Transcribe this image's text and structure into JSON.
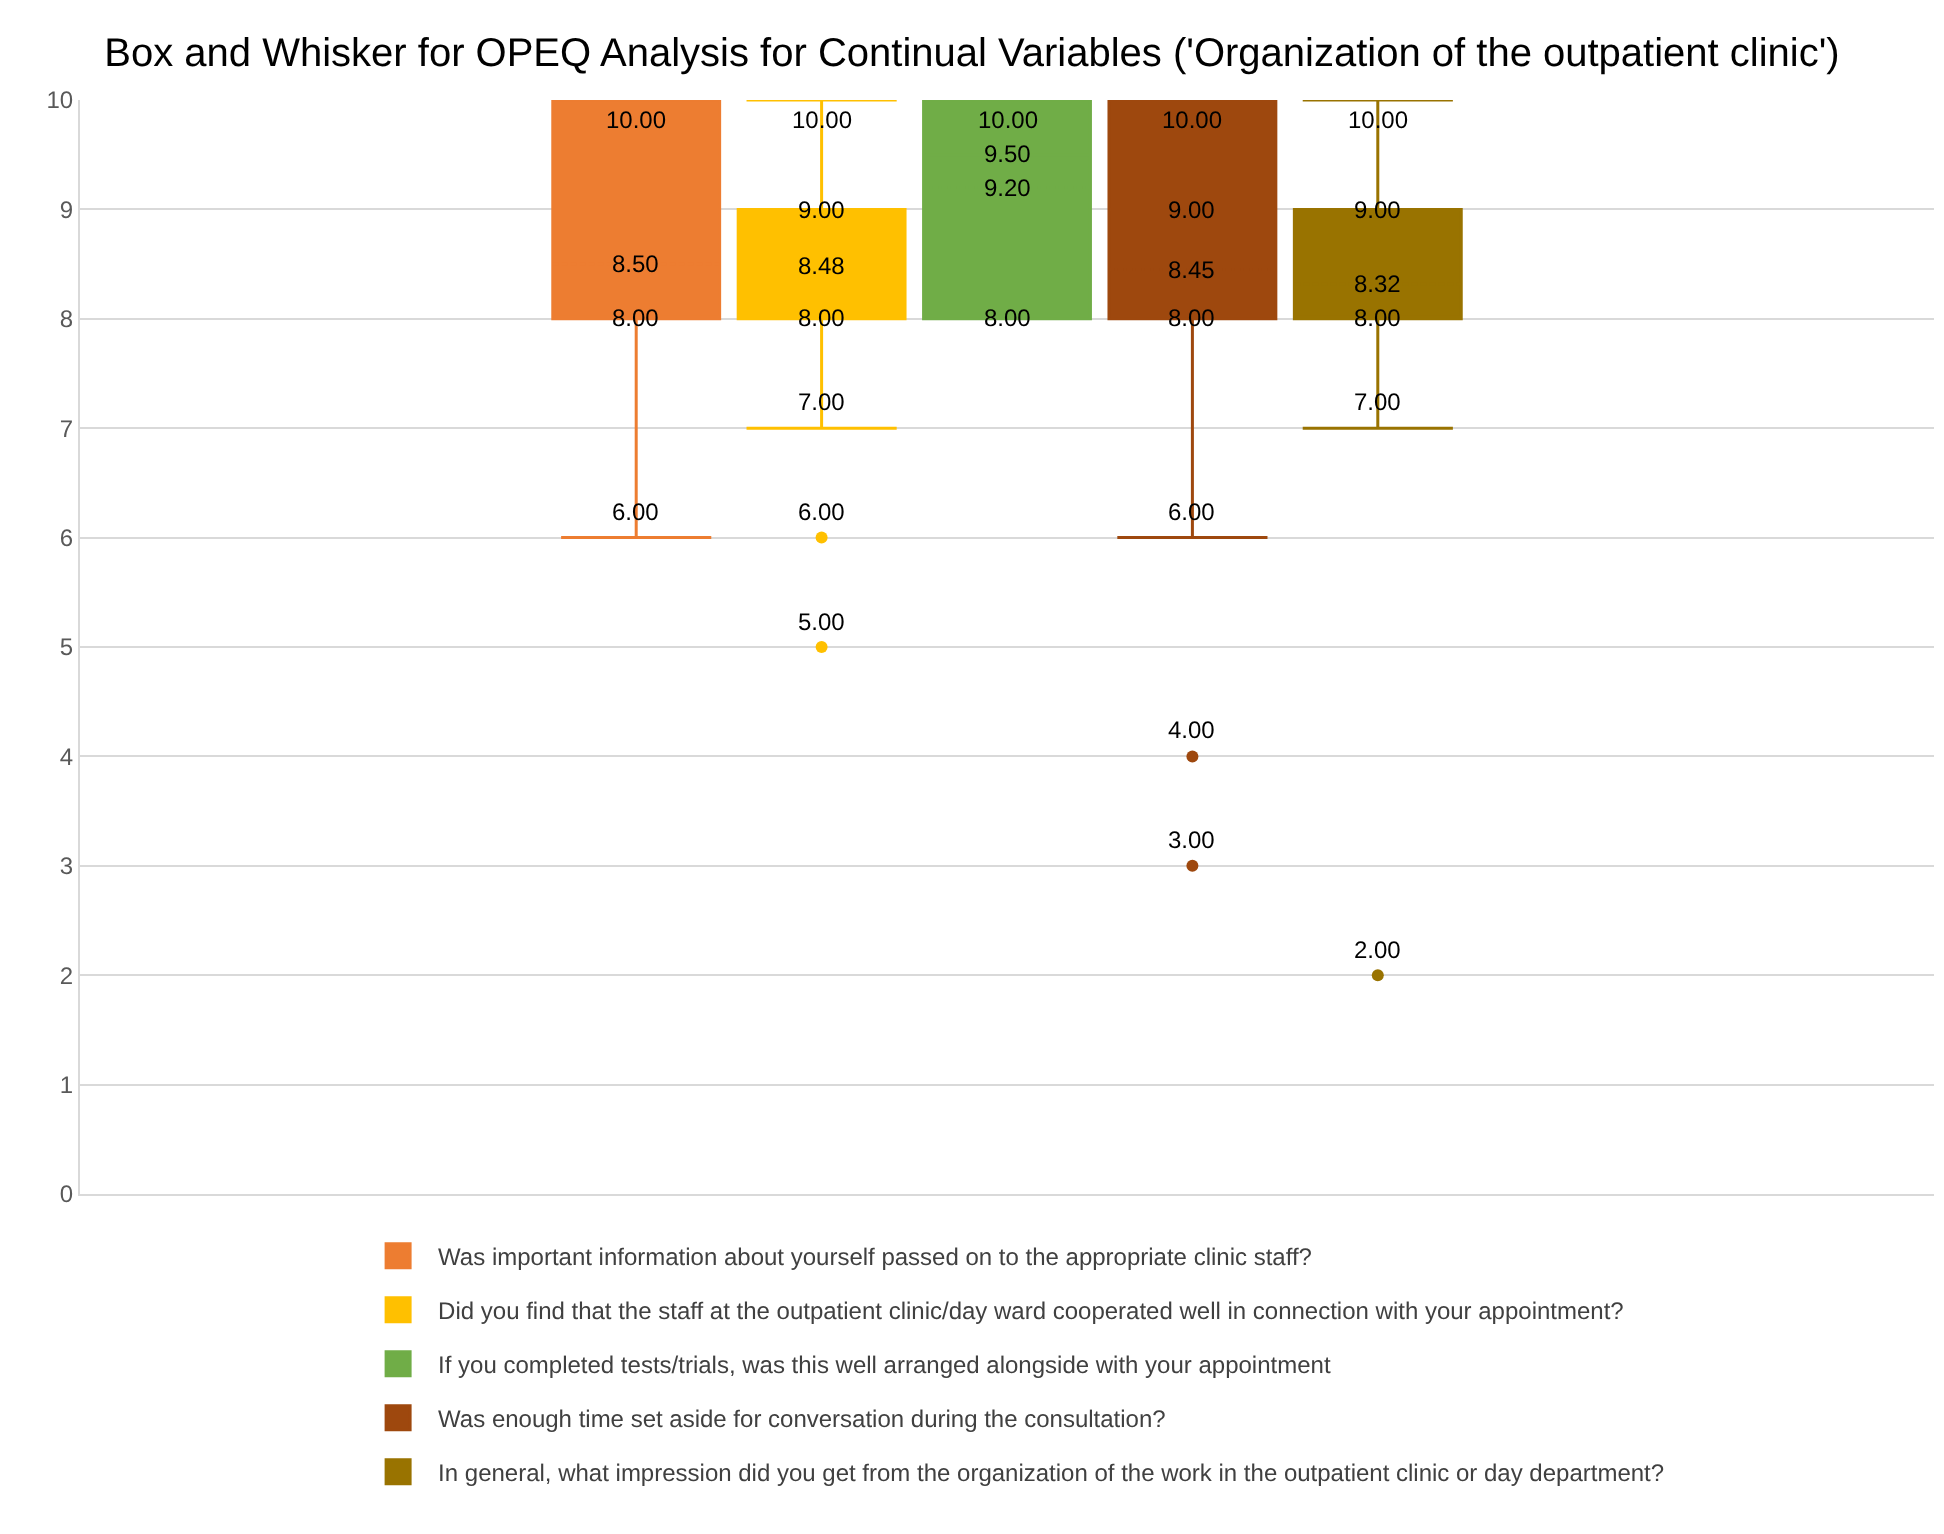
{
  "chart_data": {
    "type": "box",
    "title": "Box and Whisker for OPEQ Analysis for Continual Variables ('Organization of the outpatient clinic')",
    "categories": [
      null
    ],
    "series": [
      {
        "name": "Was important information about yourself passed on to the appropriate clinic staff?",
        "color": "#ed7d31",
        "boxes": [
          {
            "low": 6,
            "q1": 8,
            "median": 8,
            "q3": 10,
            "high": 10,
            "mean": 8.5
          }
        ],
        "value_labels": [
          [
            "10.00",
            null,
            null,
            "8.50",
            "8.00",
            "6.00"
          ]
        ]
      },
      {
        "name": "Did you find that the staff at the outpatient clinic/day ward cooperated well in connection with your appointment?",
        "color": "#ffc000",
        "boxes": [
          {
            "low": 7,
            "q1": 8,
            "median": 8,
            "q3": 9,
            "high": 10,
            "mean": 8.48,
            "outliers": [
              6,
              5
            ]
          }
        ],
        "value_labels": [
          [
            "10.00",
            "9.00",
            null,
            "8.48",
            "8.00",
            "7.00",
            "6.00",
            "5.00"
          ]
        ]
      },
      {
        "name": "If you completed tests/trials, was this well arranged alongside with your appointment",
        "color": "#70ad47",
        "boxes": [
          {
            "low": 8,
            "q1": 8,
            "median": 9.5,
            "q3": 10,
            "high": 10,
            "mean": 9.2
          }
        ],
        "value_labels": [
          [
            "10.00",
            null,
            "9.50",
            "9.20",
            "8.00",
            null
          ]
        ]
      },
      {
        "name": "Was enough time set aside for conversation during the consultation?",
        "color": "#9e480e",
        "boxes": [
          {
            "low": 6,
            "q1": 8,
            "median": 9,
            "q3": 10,
            "high": 10,
            "mean": 8.45,
            "outliers": [
              4,
              3
            ]
          }
        ],
        "value_labels": [
          [
            "10.00",
            null,
            "9.00",
            "8.45",
            "8.00",
            "6.00",
            "4.00",
            "3.00"
          ]
        ]
      },
      {
        "name": "In general, what impression did you get from the organization of the work in the outpatient clinic or day department?",
        "color": "#997300",
        "boxes": [
          {
            "low": 7,
            "q1": 8,
            "median": 8,
            "q3": 9,
            "high": 10,
            "mean": 8.32,
            "outliers": [
              2
            ]
          }
        ],
        "value_labels": [
          [
            "10.00",
            "9.00",
            null,
            "8.32",
            "8.00",
            "7.00",
            "2.00"
          ]
        ]
      }
    ],
    "ylim": [
      0,
      10
    ],
    "yticks": [
      0,
      1,
      2,
      3,
      4,
      5,
      6,
      7,
      8,
      9,
      10
    ],
    "grid": "y",
    "legend": "bottom",
    "tick_labels": "y"
  }
}
